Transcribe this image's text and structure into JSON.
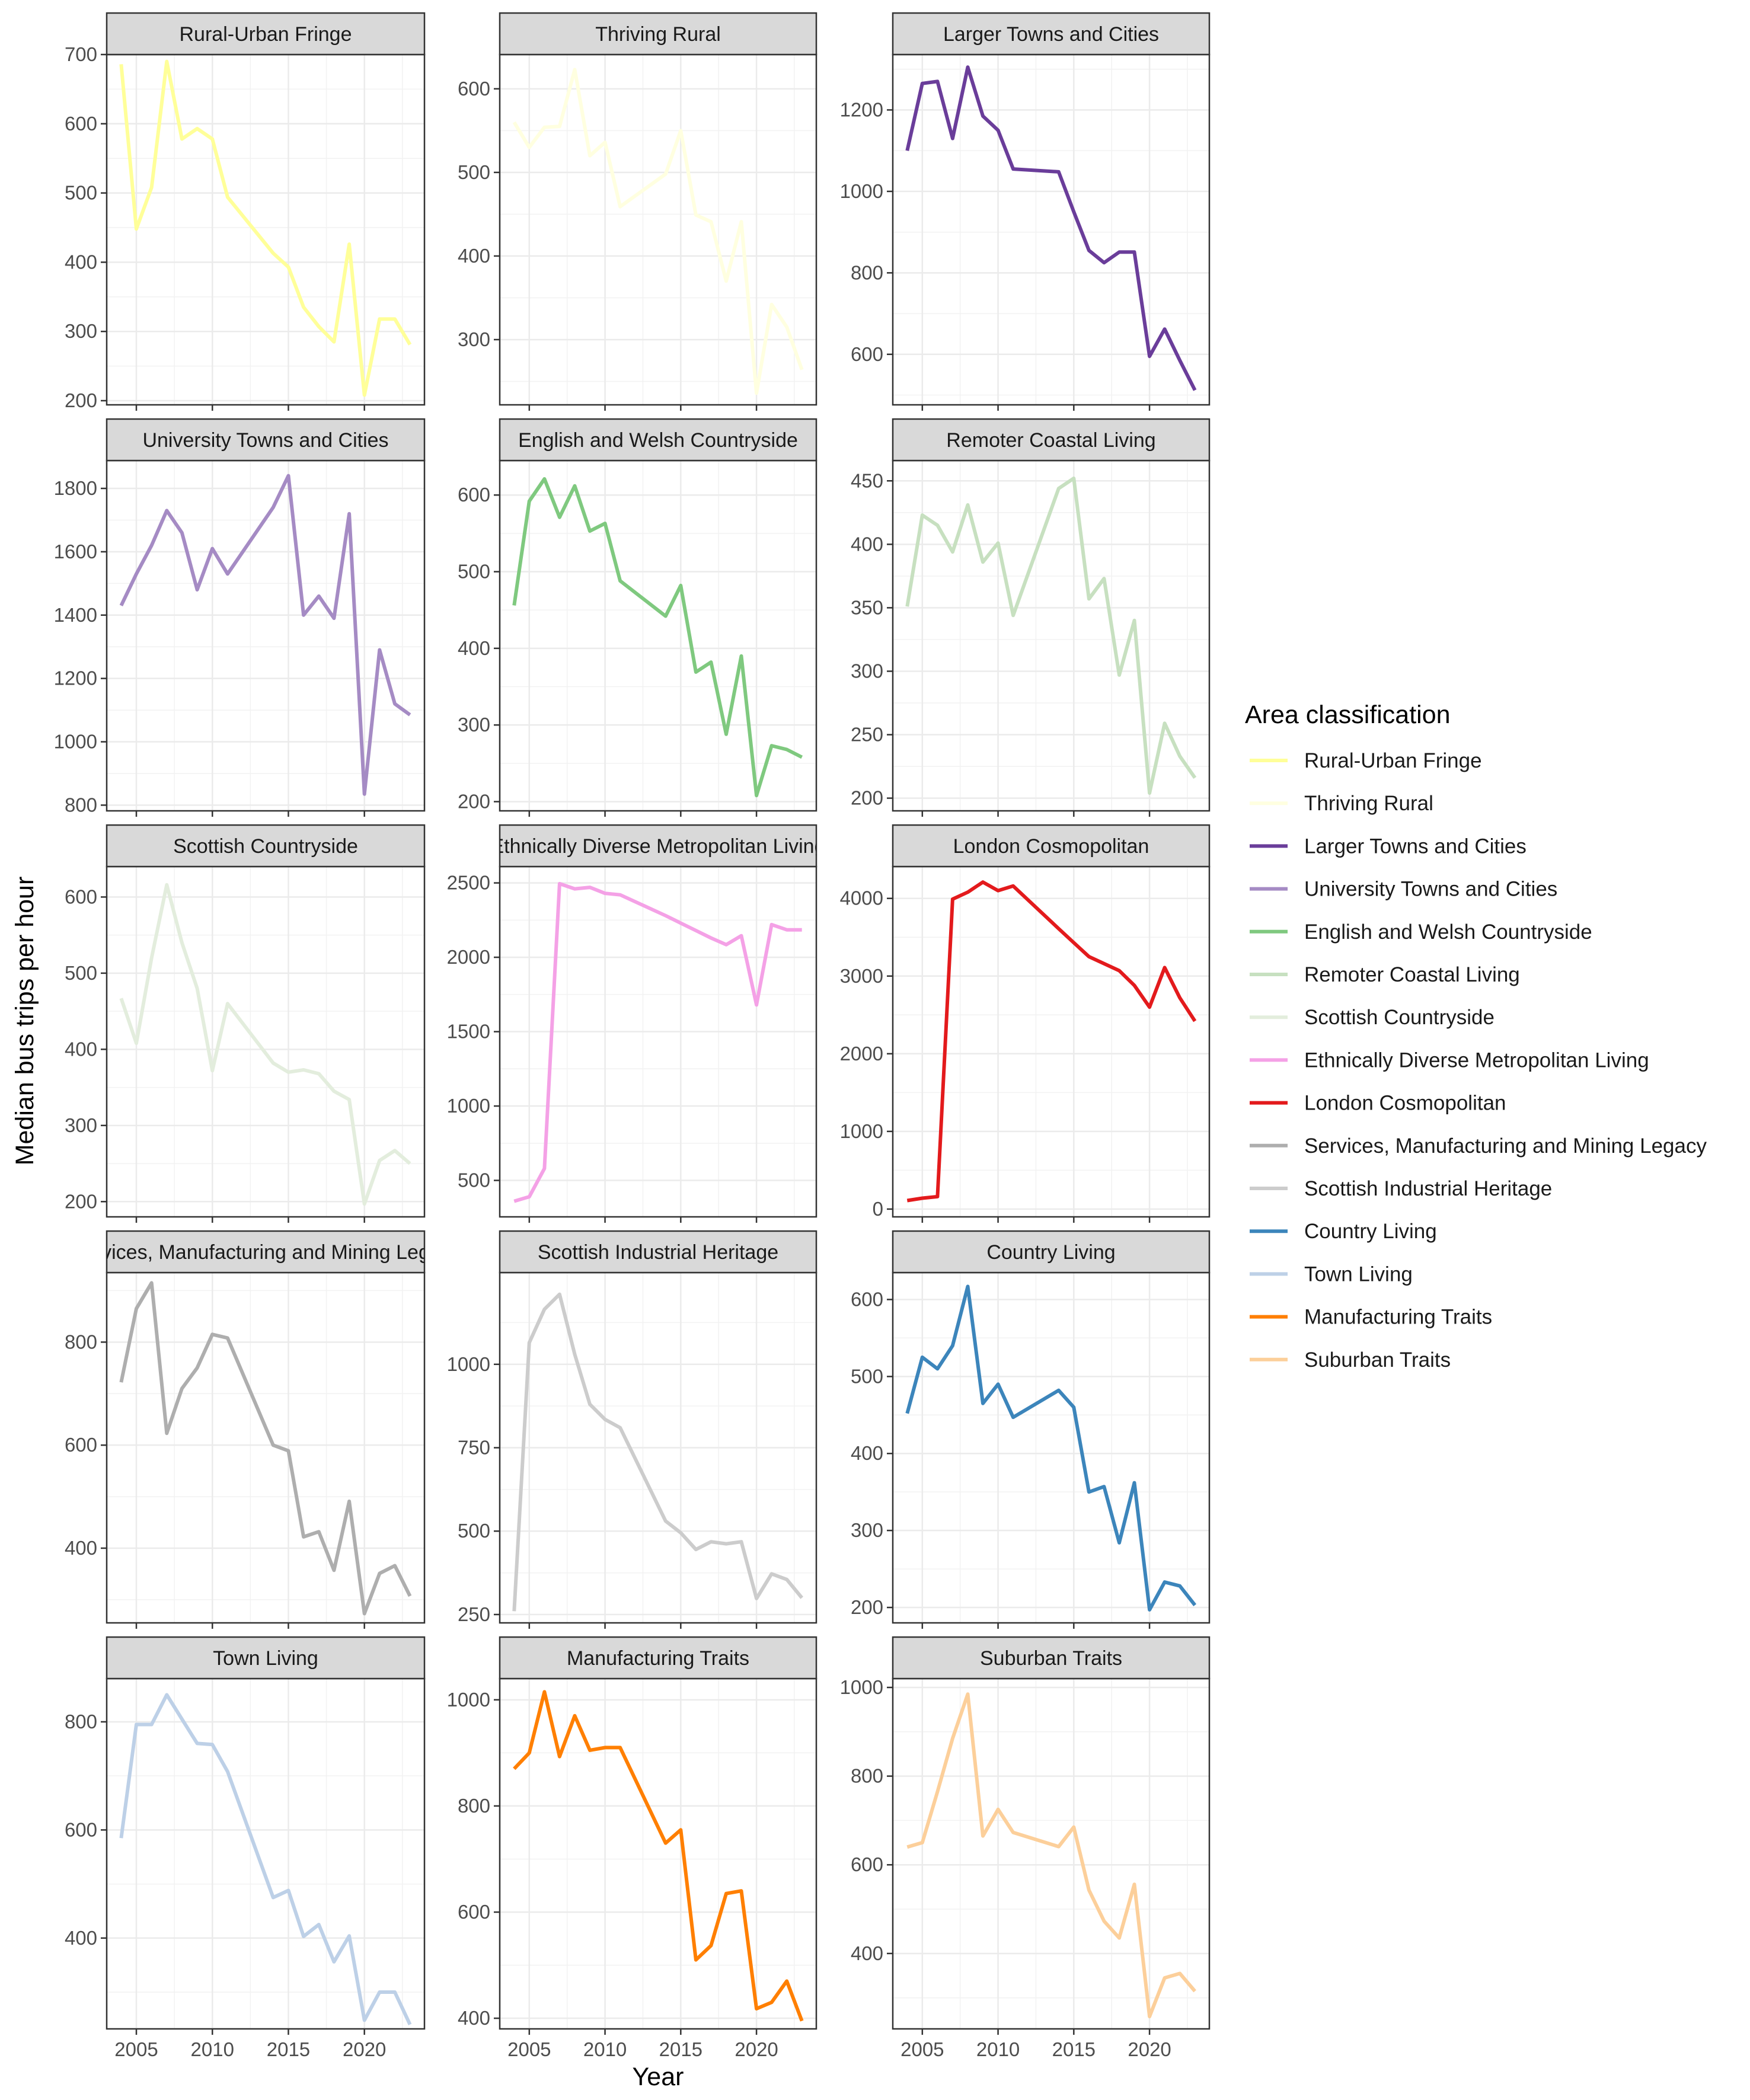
{
  "chart_data": {
    "type": "line",
    "xlabel": "Year",
    "ylabel": "Median bus trips per hour",
    "x": [
      2004,
      2005,
      2006,
      2007,
      2008,
      2009,
      2010,
      2011,
      2014,
      2015,
      2016,
      2017,
      2018,
      2019,
      2020,
      2021,
      2022,
      2023
    ],
    "x_ticks": [
      2005,
      2010,
      2015,
      2020
    ],
    "x_range": [
      2003.05,
      2023.95
    ],
    "legend": {
      "title": "Area classification",
      "position": "right"
    },
    "grid": true,
    "facet_layout": {
      "rows": 5,
      "cols": 3
    },
    "series": [
      {
        "name": "Rural-Urban Fringe",
        "color": "#FFFF99",
        "values": [
          686,
          448,
          508,
          690,
          578,
          593,
          578,
          494,
          413,
          393,
          335,
          307,
          285,
          426,
          208,
          318,
          318,
          281
        ],
        "ylim": [
          194,
          700
        ],
        "yticks": [
          200,
          300,
          400,
          500,
          600,
          700
        ]
      },
      {
        "name": "Thriving Rural",
        "color": "#FFFFE0",
        "values": [
          560,
          530,
          554,
          555,
          623,
          520,
          536,
          459,
          498,
          550,
          449,
          441,
          370,
          441,
          236,
          342,
          315,
          264
        ],
        "ylim": [
          222,
          641
        ],
        "yticks": [
          300,
          400,
          500,
          600
        ]
      },
      {
        "name": "Larger Towns and Cities",
        "color": "#6A3D9A",
        "values": [
          1100,
          1265,
          1270,
          1130,
          1305,
          1185,
          1150,
          1055,
          1048,
          950,
          855,
          825,
          851,
          851,
          595,
          662,
          585,
          512
        ],
        "ylim": [
          476,
          1336
        ],
        "yticks": [
          600,
          800,
          1000,
          1200
        ]
      },
      {
        "name": "University Towns and Cities",
        "color": "#A58BC4",
        "values": [
          1430,
          1530,
          1620,
          1730,
          1660,
          1480,
          1610,
          1530,
          1740,
          1840,
          1400,
          1460,
          1390,
          1720,
          835,
          1290,
          1120,
          1085
        ],
        "ylim": [
          782,
          1888
        ],
        "yticks": [
          800,
          1000,
          1200,
          1400,
          1600,
          1800
        ]
      },
      {
        "name": "English and Welsh Countryside",
        "color": "#7FC97F",
        "values": [
          456,
          592,
          621,
          571,
          612,
          553,
          563,
          488,
          442,
          482,
          369,
          382,
          288,
          390,
          208,
          273,
          268,
          258
        ],
        "ylim": [
          188,
          645
        ],
        "yticks": [
          200,
          300,
          400,
          500,
          600
        ]
      },
      {
        "name": "Remoter Coastal Living",
        "color": "#C7E0C0",
        "values": [
          351,
          423,
          415,
          394,
          431,
          386,
          401,
          344,
          444,
          452,
          357,
          373,
          297,
          340,
          204,
          259,
          233,
          216
        ],
        "ylim": [
          190,
          466
        ],
        "yticks": [
          200,
          250,
          300,
          350,
          400,
          450
        ]
      },
      {
        "name": "Scottish Countryside",
        "color": "#E3EDDD",
        "values": [
          467,
          408,
          520,
          616,
          540,
          480,
          372,
          460,
          382,
          370,
          373,
          368,
          345,
          334,
          197,
          254,
          267,
          250
        ],
        "ylim": [
          180,
          640
        ],
        "yticks": [
          200,
          300,
          400,
          500,
          600
        ]
      },
      {
        "name": "Ethnically Diverse Metropolitan  Living",
        "color": "#F4A1E6",
        "values": [
          360,
          390,
          580,
          2495,
          2460,
          2470,
          2430,
          2420,
          2280,
          2230,
          2180,
          2130,
          2085,
          2145,
          1680,
          2220,
          2185,
          2185
        ],
        "ylim": [
          255,
          2610
        ],
        "yticks": [
          500,
          1000,
          1500,
          2000,
          2500
        ]
      },
      {
        "name": "London Cosmopolitan",
        "color": "#E31A1C",
        "values": [
          110,
          140,
          160,
          3990,
          4080,
          4210,
          4100,
          4160,
          3610,
          3430,
          3250,
          3070,
          2880,
          2600,
          3110,
          2720,
          2420,
          2420
        ],
        "ylim": [
          -100,
          4410
        ],
        "yticks": [
          0,
          1000,
          2000,
          3000,
          4000
        ],
        "x": [
          2004,
          2005,
          2006,
          2007,
          2008,
          2009,
          2010,
          2011,
          2014,
          2015,
          2016,
          2018,
          2019,
          2020,
          2021,
          2022,
          2023,
          2023
        ]
      },
      {
        "name": "Services, Manufacturing and Mining Legacy",
        "color": "#AEAEAE",
        "values": [
          722,
          865,
          915,
          623,
          710,
          750,
          815,
          808,
          600,
          589,
          422,
          432,
          357,
          491,
          273,
          351,
          366,
          307
        ],
        "ylim": [
          255,
          935
        ],
        "yticks": [
          400,
          600,
          800
        ]
      },
      {
        "name": "Scottish Industrial Heritage",
        "color": "#CCCCCC",
        "values": [
          260,
          1065,
          1165,
          1210,
          1030,
          880,
          835,
          810,
          530,
          495,
          445,
          468,
          462,
          468,
          298,
          372,
          355,
          300
        ],
        "ylim": [
          225,
          1275
        ],
        "yticks": [
          250,
          500,
          750,
          1000
        ]
      },
      {
        "name": "Country Living",
        "color": "#3C85BB",
        "values": [
          452,
          525,
          510,
          540,
          617,
          465,
          490,
          447,
          482,
          460,
          350,
          357,
          284,
          362,
          197,
          233,
          228,
          203
        ],
        "ylim": [
          180,
          635
        ],
        "yticks": [
          200,
          300,
          400,
          500,
          600
        ]
      },
      {
        "name": "Town Living",
        "color": "#BDD0E7",
        "values": [
          585,
          795,
          795,
          850,
          805,
          760,
          758,
          708,
          475,
          488,
          403,
          425,
          356,
          404,
          248,
          300,
          300,
          240
        ],
        "ylim": [
          232,
          880
        ],
        "yticks": [
          400,
          600,
          800
        ]
      },
      {
        "name": "Manufacturing Traits",
        "color": "#FF7F00",
        "values": [
          870,
          900,
          1015,
          893,
          970,
          905,
          910,
          910,
          730,
          755,
          510,
          537,
          635,
          640,
          418,
          430,
          470,
          395
        ],
        "ylim": [
          380,
          1040
        ],
        "yticks": [
          400,
          600,
          800,
          1000
        ]
      },
      {
        "name": "Suburban Traits",
        "color": "#FCCF9A",
        "values": [
          640,
          650,
          765,
          885,
          985,
          665,
          725,
          673,
          641,
          685,
          543,
          473,
          435,
          556,
          258,
          345,
          355,
          315
        ],
        "ylim": [
          230,
          1020
        ],
        "yticks": [
          400,
          600,
          800,
          1000
        ]
      }
    ]
  }
}
